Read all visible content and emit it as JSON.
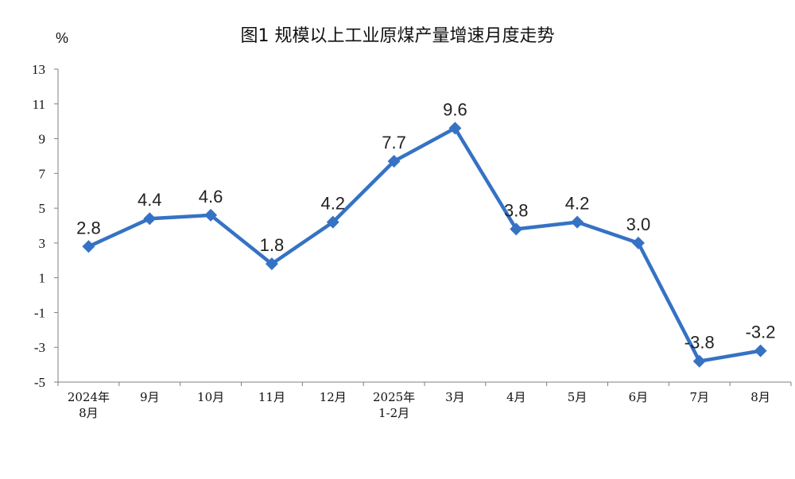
{
  "chart_data": {
    "type": "line",
    "title": "图1  规模以上工业原煤产量增速月度走势",
    "ylabel": "%",
    "categories": [
      [
        "2024年",
        "8月"
      ],
      [
        "9月"
      ],
      [
        "10月"
      ],
      [
        "11月"
      ],
      [
        "12月"
      ],
      [
        "2025年",
        "1-2月"
      ],
      [
        "3月"
      ],
      [
        "4月"
      ],
      [
        "5月"
      ],
      [
        "6月"
      ],
      [
        "7月"
      ],
      [
        "8月"
      ]
    ],
    "series": [
      {
        "values": [
          2.8,
          4.4,
          4.6,
          1.8,
          4.2,
          7.7,
          9.6,
          3.8,
          4.2,
          3.0,
          -3.8,
          -3.2
        ],
        "labels": [
          "2.8",
          "4.4",
          "4.6",
          "1.8",
          "4.2",
          "7.7",
          "9.6",
          "3.8",
          "4.2",
          "3.0",
          "-3.8",
          "-3.2"
        ],
        "color": "#3572c4",
        "marker": "diamond"
      }
    ],
    "ylim": [
      -5,
      13
    ],
    "yticks": [
      -5,
      -3,
      -1,
      1,
      3,
      5,
      7,
      9,
      11,
      13
    ],
    "grid": false,
    "legend": "none"
  }
}
